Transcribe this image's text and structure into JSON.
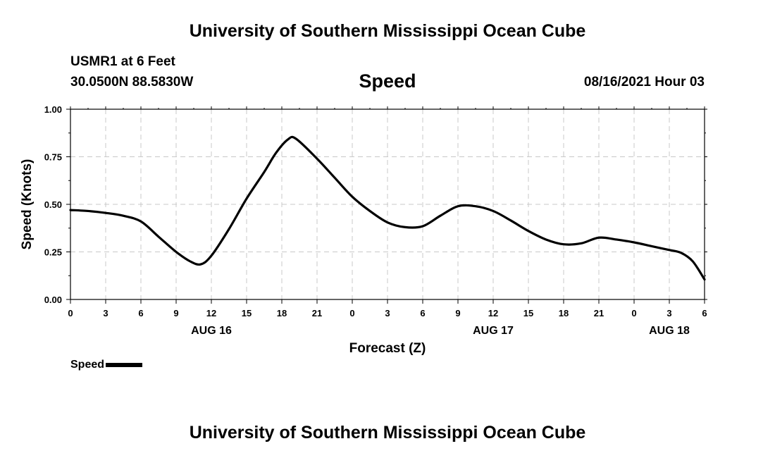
{
  "header": {
    "title_top": "University of Southern Mississippi Ocean Cube",
    "station": "USMR1 at 6 Feet",
    "coords": "30.0500N  88.5830W",
    "variable": "Speed",
    "timestamp": "08/16/2021 Hour 03"
  },
  "footer": {
    "title_bottom": "University of Southern Mississippi Ocean Cube"
  },
  "legend": {
    "label": "Speed"
  },
  "chart_data": {
    "type": "line",
    "title": "Speed",
    "xlabel": "Forecast (Z)",
    "ylabel": "Speed (Knots)",
    "xlim": [
      0,
      54
    ],
    "ylim": [
      0,
      1
    ],
    "grid": true,
    "x_ticks": [
      0,
      3,
      6,
      9,
      12,
      15,
      18,
      21,
      24,
      27,
      30,
      33,
      36,
      39,
      42,
      45,
      48,
      51,
      54
    ],
    "x_tick_labels": [
      "0",
      "3",
      "6",
      "9",
      "12",
      "15",
      "18",
      "21",
      "0",
      "3",
      "6",
      "9",
      "12",
      "15",
      "18",
      "21",
      "0",
      "3",
      "6"
    ],
    "y_ticks": [
      0,
      0.25,
      0.5,
      0.75,
      1.0
    ],
    "y_tick_labels": [
      "0.00",
      "0.25",
      "0.50",
      "0.75",
      "1.00"
    ],
    "date_labels": [
      {
        "text": "AUG 16",
        "x": 12
      },
      {
        "text": "AUG 17",
        "x": 36
      },
      {
        "text": "AUG 18",
        "x": 51
      }
    ],
    "series": [
      {
        "name": "Speed",
        "color": "#000000",
        "x": [
          0,
          1.5,
          3,
          4.5,
          6,
          7.5,
          9,
          10.2,
          11.1,
          12,
          13.5,
          15,
          16.5,
          17.5,
          18.5,
          19.2,
          21,
          22.5,
          24,
          25.5,
          27,
          28.5,
          30,
          31.5,
          33,
          34.5,
          36,
          37.5,
          39,
          40.5,
          42,
          43.5,
          45,
          46.5,
          48,
          49.5,
          51,
          52,
          53,
          54
        ],
        "values": [
          0.47,
          0.465,
          0.455,
          0.44,
          0.41,
          0.33,
          0.25,
          0.2,
          0.185,
          0.23,
          0.37,
          0.53,
          0.67,
          0.77,
          0.84,
          0.845,
          0.74,
          0.64,
          0.54,
          0.465,
          0.405,
          0.38,
          0.385,
          0.44,
          0.49,
          0.49,
          0.465,
          0.415,
          0.36,
          0.315,
          0.29,
          0.295,
          0.325,
          0.315,
          0.3,
          0.28,
          0.26,
          0.245,
          0.2,
          0.105
        ]
      }
    ]
  }
}
